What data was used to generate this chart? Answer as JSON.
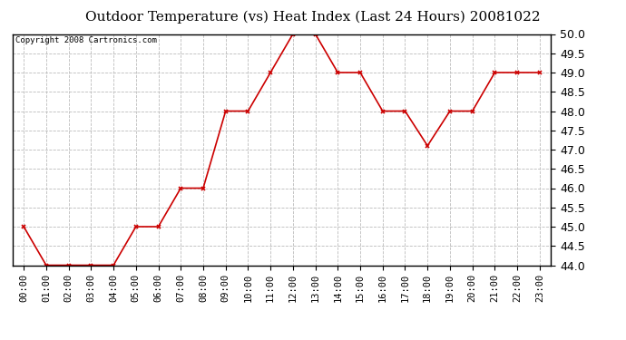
{
  "title": "Outdoor Temperature (vs) Heat Index (Last 24 Hours) 20081022",
  "copyright": "Copyright 2008 Cartronics.com",
  "hours": [
    "00:00",
    "01:00",
    "02:00",
    "03:00",
    "04:00",
    "05:00",
    "06:00",
    "07:00",
    "08:00",
    "09:00",
    "10:00",
    "11:00",
    "12:00",
    "13:00",
    "14:00",
    "15:00",
    "16:00",
    "17:00",
    "18:00",
    "19:00",
    "20:00",
    "21:00",
    "22:00",
    "23:00"
  ],
  "values": [
    45.0,
    44.0,
    44.0,
    44.0,
    44.0,
    45.0,
    45.0,
    46.0,
    46.0,
    48.0,
    48.0,
    49.0,
    50.0,
    50.0,
    49.0,
    49.0,
    48.0,
    48.0,
    47.1,
    48.0,
    48.0,
    49.0,
    49.0,
    49.0
  ],
  "ylim": [
    44.0,
    50.0
  ],
  "ytick_step": 0.5,
  "line_color": "#cc0000",
  "marker": "x",
  "marker_color": "#cc0000",
  "bg_color": "#ffffff",
  "plot_bg_color": "#ffffff",
  "grid_color": "#bbbbbb",
  "title_fontsize": 11,
  "copyright_fontsize": 6.5,
  "tick_fontsize": 7.5,
  "ytick_fontsize": 9
}
